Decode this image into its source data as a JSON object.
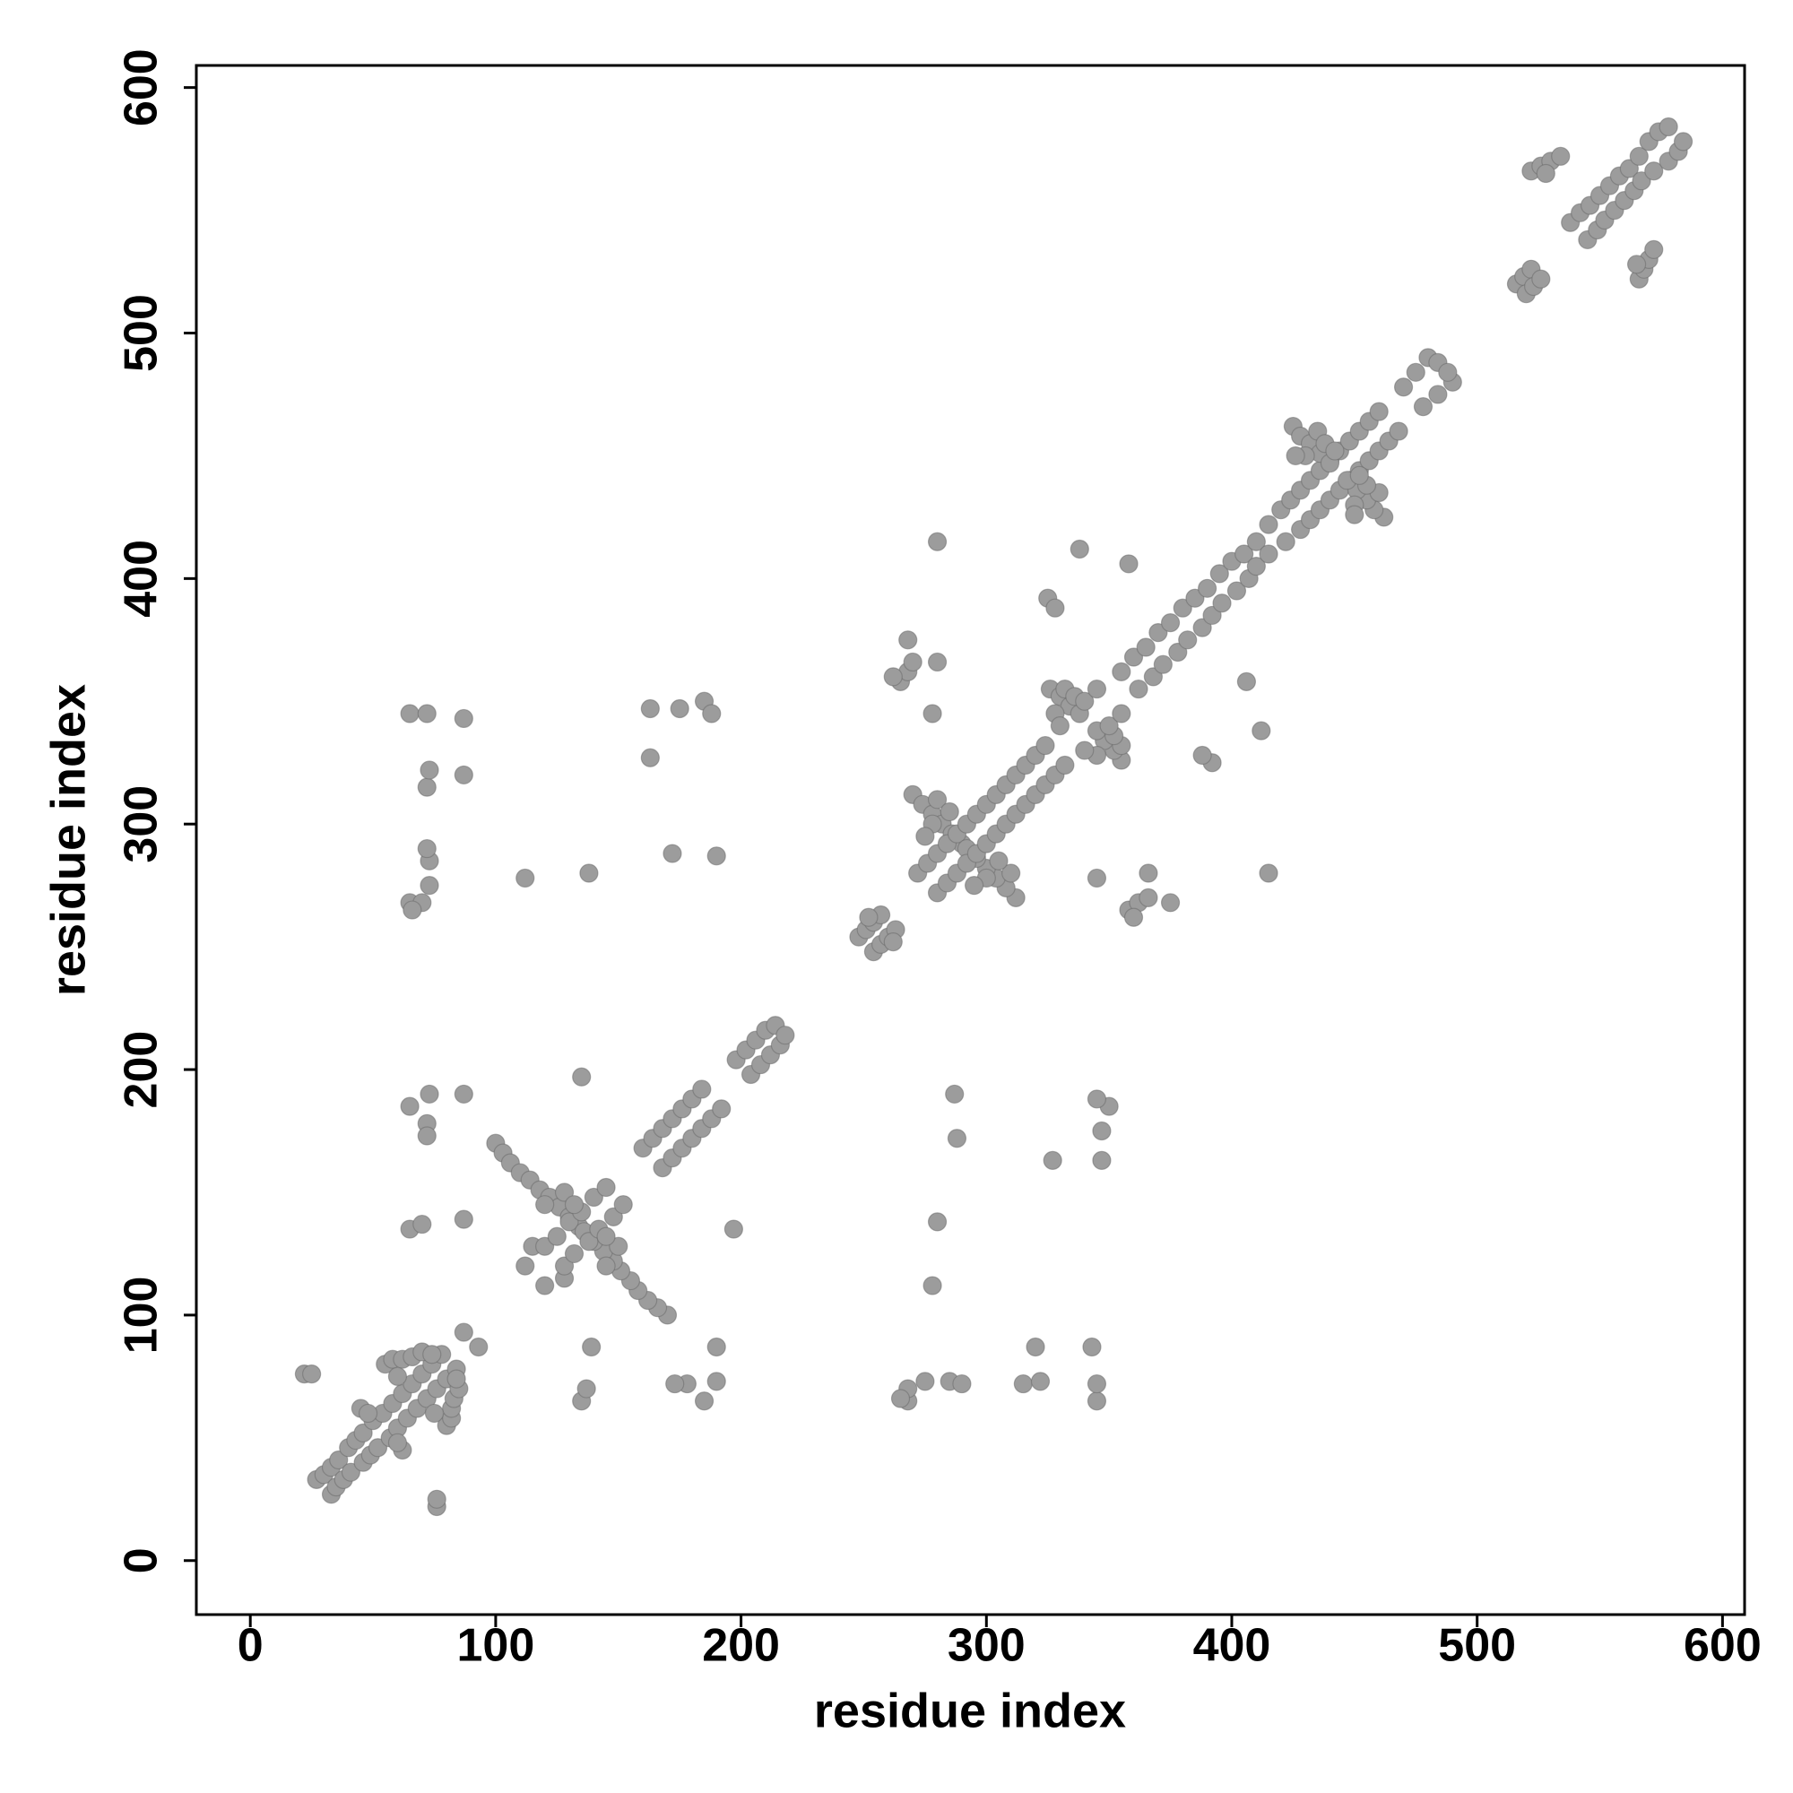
{
  "chart_data": {
    "type": "scatter",
    "xlabel": "residue index",
    "ylabel": "residue index",
    "color": "#9c9c9c",
    "xlim": [
      -22,
      609
    ],
    "ylim": [
      -22,
      609
    ],
    "xticks": [
      0,
      100,
      200,
      300,
      400,
      500,
      600
    ],
    "yticks": [
      0,
      100,
      200,
      300,
      400,
      500,
      600
    ],
    "x": [
      22,
      25,
      27,
      30,
      33,
      36,
      40,
      43,
      46,
      50,
      54,
      58,
      62,
      66,
      70,
      74,
      78,
      45,
      48,
      55,
      58,
      62,
      66,
      70,
      74,
      60,
      87,
      65,
      70,
      87,
      65,
      72,
      73,
      87,
      72,
      65,
      70,
      66,
      73,
      73,
      72,
      72,
      73,
      87,
      65,
      72,
      87,
      100,
      103,
      106,
      110,
      114,
      118,
      122,
      126,
      130,
      134,
      112,
      115,
      120,
      125,
      130,
      135,
      140,
      145,
      120,
      128,
      132,
      112,
      138,
      135,
      160,
      164,
      168,
      172,
      176,
      180,
      184,
      163,
      175,
      185,
      188,
      163,
      172,
      190,
      198,
      202,
      206,
      210,
      214,
      248,
      251,
      254,
      257,
      252,
      265,
      268,
      270,
      268,
      280,
      278,
      262,
      270,
      274,
      278,
      282,
      286,
      290,
      272,
      276,
      280,
      284,
      288,
      292,
      296,
      300,
      304,
      308,
      312,
      316,
      320,
      324,
      278,
      280,
      285,
      275,
      280,
      325,
      328,
      338,
      358,
      326,
      330,
      334,
      338,
      328,
      332,
      336,
      340,
      345,
      330,
      355,
      360,
      365,
      370,
      375,
      380,
      385,
      390,
      395,
      400,
      405,
      410,
      415,
      420,
      424,
      428,
      432,
      436,
      440,
      444,
      448,
      452,
      456,
      460,
      425,
      428,
      432,
      436,
      440,
      430,
      435,
      438,
      442,
      426,
      470,
      475,
      480,
      484,
      516,
      519,
      522,
      522,
      526,
      530,
      534,
      528,
      538,
      542,
      546,
      550,
      554,
      558,
      562,
      566,
      570,
      574,
      578,
      76,
      76,
      33,
      35,
      38,
      41,
      46,
      49,
      52,
      57,
      60,
      64,
      68,
      72,
      76,
      80,
      84,
      62,
      60,
      80,
      82,
      82,
      83,
      85,
      84,
      75,
      93,
      135,
      137,
      139,
      185,
      178,
      190,
      190,
      173,
      268,
      268,
      265,
      275,
      285,
      290,
      315,
      322,
      320,
      345,
      345,
      343,
      170,
      166,
      162,
      158,
      155,
      151,
      148,
      144,
      140,
      136,
      120,
      128,
      128,
      132,
      138,
      142,
      148,
      152,
      145,
      150,
      145,
      278,
      280,
      197,
      168,
      172,
      176,
      180,
      184,
      188,
      192,
      347,
      347,
      350,
      345,
      327,
      288,
      287,
      204,
      208,
      212,
      216,
      218,
      254,
      257,
      260,
      263,
      262,
      358,
      362,
      366,
      375,
      366,
      345,
      360,
      312,
      308,
      304,
      300,
      296,
      292,
      280,
      284,
      288,
      292,
      296,
      300,
      304,
      308,
      312,
      316,
      320,
      324,
      328,
      332,
      300,
      310,
      305,
      295,
      415,
      392,
      388,
      412,
      406,
      355,
      352,
      348,
      345,
      345,
      355,
      352,
      350,
      355,
      340,
      362,
      368,
      372,
      378,
      382,
      388,
      392,
      396,
      402,
      407,
      410,
      415,
      422,
      428,
      432,
      436,
      440,
      444,
      448,
      452,
      456,
      460,
      464,
      468,
      462,
      458,
      455,
      451,
      447,
      450,
      460,
      455,
      452,
      450,
      478,
      484,
      490,
      488,
      520,
      523,
      526,
      566,
      568,
      570,
      572,
      565,
      545,
      549,
      552,
      556,
      560,
      564,
      567,
      572,
      578,
      582,
      584
    ],
    "values": [
      76,
      76,
      33,
      35,
      38,
      41,
      46,
      49,
      52,
      57,
      60,
      64,
      68,
      72,
      76,
      80,
      84,
      62,
      60,
      80,
      82,
      82,
      83,
      85,
      84,
      75,
      93,
      135,
      137,
      139,
      185,
      178,
      190,
      190,
      173,
      268,
      268,
      265,
      275,
      285,
      290,
      315,
      322,
      320,
      345,
      345,
      343,
      170,
      166,
      162,
      158,
      155,
      151,
      148,
      144,
      140,
      136,
      120,
      128,
      128,
      132,
      138,
      142,
      148,
      152,
      145,
      150,
      145,
      278,
      280,
      197,
      168,
      172,
      176,
      180,
      184,
      188,
      192,
      347,
      347,
      350,
      345,
      327,
      288,
      287,
      204,
      208,
      212,
      216,
      218,
      254,
      257,
      260,
      263,
      262,
      358,
      362,
      366,
      375,
      366,
      345,
      360,
      312,
      308,
      304,
      300,
      296,
      292,
      280,
      284,
      288,
      292,
      296,
      300,
      304,
      308,
      312,
      316,
      320,
      324,
      328,
      332,
      300,
      310,
      305,
      295,
      415,
      392,
      388,
      412,
      406,
      355,
      352,
      348,
      345,
      345,
      355,
      352,
      350,
      355,
      340,
      362,
      368,
      372,
      378,
      382,
      388,
      392,
      396,
      402,
      407,
      410,
      415,
      422,
      428,
      432,
      436,
      440,
      444,
      448,
      452,
      456,
      460,
      464,
      468,
      462,
      458,
      455,
      451,
      447,
      450,
      460,
      455,
      452,
      450,
      478,
      484,
      490,
      488,
      520,
      523,
      526,
      566,
      568,
      570,
      572,
      565,
      545,
      549,
      552,
      556,
      560,
      564,
      567,
      572,
      578,
      582,
      584,
      22,
      25,
      27,
      30,
      33,
      36,
      40,
      43,
      46,
      50,
      54,
      58,
      62,
      66,
      70,
      74,
      78,
      45,
      48,
      55,
      58,
      62,
      66,
      70,
      74,
      60,
      87,
      65,
      70,
      87,
      65,
      72,
      73,
      87,
      72,
      65,
      70,
      66,
      73,
      73,
      72,
      72,
      73,
      87,
      65,
      72,
      87,
      100,
      103,
      106,
      110,
      114,
      118,
      122,
      126,
      130,
      134,
      112,
      115,
      120,
      125,
      130,
      135,
      140,
      145,
      120,
      128,
      132,
      112,
      138,
      135,
      160,
      164,
      168,
      172,
      176,
      180,
      184,
      163,
      175,
      185,
      188,
      163,
      172,
      190,
      198,
      202,
      206,
      210,
      214,
      248,
      251,
      254,
      257,
      252,
      265,
      268,
      270,
      268,
      280,
      278,
      262,
      270,
      274,
      278,
      282,
      286,
      290,
      272,
      276,
      280,
      284,
      288,
      292,
      296,
      300,
      304,
      308,
      312,
      316,
      320,
      324,
      278,
      280,
      285,
      275,
      280,
      325,
      328,
      338,
      358,
      326,
      330,
      334,
      338,
      328,
      332,
      336,
      340,
      345,
      330,
      355,
      360,
      365,
      370,
      375,
      380,
      385,
      390,
      395,
      400,
      405,
      410,
      415,
      420,
      424,
      428,
      432,
      436,
      440,
      444,
      448,
      452,
      456,
      460,
      425,
      428,
      432,
      436,
      440,
      430,
      435,
      438,
      442,
      426,
      470,
      475,
      480,
      484,
      516,
      519,
      522,
      522,
      526,
      530,
      534,
      528,
      538,
      542,
      546,
      550,
      554,
      558,
      562,
      566,
      570,
      574,
      578
    ]
  }
}
